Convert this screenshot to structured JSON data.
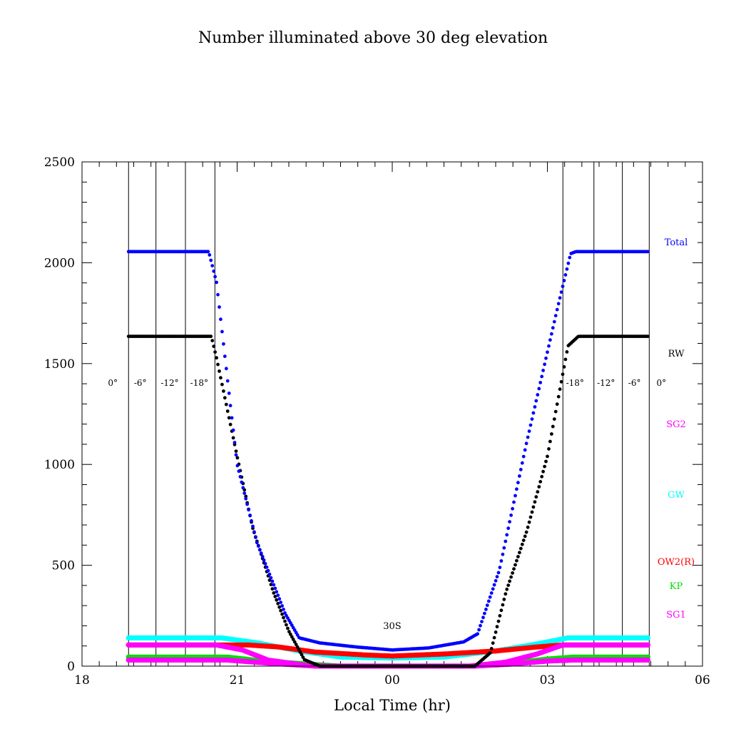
{
  "chart_data": {
    "type": "scatter",
    "title": "Number illuminated above 30 deg elevation",
    "xlabel": "Local Time (hr)",
    "ylabel": "",
    "xlim": [
      18,
      30
    ],
    "ylim": [
      0,
      2500
    ],
    "xticks": [
      {
        "v": 18,
        "label": "18"
      },
      {
        "v": 21,
        "label": "21"
      },
      {
        "v": 24,
        "label": "00"
      },
      {
        "v": 27,
        "label": "03"
      },
      {
        "v": 30,
        "label": "06"
      }
    ],
    "yticks": [
      {
        "v": 0,
        "label": "0"
      },
      {
        "v": 500,
        "label": "500"
      },
      {
        "v": 1000,
        "label": "1000"
      },
      {
        "v": 1500,
        "label": "1500"
      },
      {
        "v": 2000,
        "label": "2000"
      },
      {
        "v": 2500,
        "label": "2500"
      }
    ],
    "annotation": "30S",
    "twilight_lines": [
      {
        "x": 18.9,
        "label": "0°",
        "side": "left"
      },
      {
        "x": 19.43,
        "label": "-6°",
        "side": "left"
      },
      {
        "x": 20.0,
        "label": "-12°",
        "side": "left"
      },
      {
        "x": 20.57,
        "label": "-18°",
        "side": "left"
      },
      {
        "x": 27.3,
        "label": "-18°",
        "side": "right"
      },
      {
        "x": 27.9,
        "label": "-12°",
        "side": "right"
      },
      {
        "x": 28.45,
        "label": "-6°",
        "side": "right"
      },
      {
        "x": 28.97,
        "label": "0°",
        "side": "right"
      }
    ],
    "series": [
      {
        "name": "Total",
        "color": "#0000ff",
        "points": [
          [
            18.9,
            2055
          ],
          [
            20.45,
            2055
          ],
          [
            20.6,
            1905
          ],
          [
            21.0,
            1000
          ],
          [
            21.38,
            615
          ],
          [
            21.93,
            260
          ],
          [
            22.2,
            140
          ],
          [
            22.6,
            115
          ],
          [
            23.3,
            95
          ],
          [
            24,
            80
          ],
          [
            24.7,
            90
          ],
          [
            25.38,
            120
          ],
          [
            25.65,
            160
          ],
          [
            26.07,
            475
          ],
          [
            26.6,
            1110
          ],
          [
            27.2,
            1780
          ],
          [
            27.45,
            2045
          ],
          [
            27.55,
            2055
          ],
          [
            28.97,
            2055
          ]
        ]
      },
      {
        "name": "RW",
        "color": "#000000",
        "points": [
          [
            18.9,
            1635
          ],
          [
            20.5,
            1635
          ],
          [
            20.6,
            1530
          ],
          [
            21.0,
            1040
          ],
          [
            21.3,
            686
          ],
          [
            21.7,
            368
          ],
          [
            22.0,
            173
          ],
          [
            22.3,
            32
          ],
          [
            22.6,
            0
          ],
          [
            25.6,
            0
          ],
          [
            25.9,
            67
          ],
          [
            26.2,
            368
          ],
          [
            26.6,
            668
          ],
          [
            27.0,
            1040
          ],
          [
            27.4,
            1588
          ],
          [
            27.6,
            1635
          ],
          [
            28.97,
            1635
          ]
        ]
      },
      {
        "name": "SG2",
        "color": "#ff00ff",
        "points": [
          [
            18.9,
            105
          ],
          [
            20.6,
            105
          ],
          [
            21.1,
            80
          ],
          [
            21.6,
            30
          ],
          [
            22.3,
            5
          ],
          [
            22.8,
            0
          ],
          [
            25.5,
            0
          ],
          [
            26.2,
            20
          ],
          [
            26.8,
            60
          ],
          [
            27.3,
            105
          ],
          [
            28.97,
            105
          ]
        ]
      },
      {
        "name": "GW",
        "color": "#00ffff",
        "points": [
          [
            18.9,
            140
          ],
          [
            20.7,
            140
          ],
          [
            21.4,
            115
          ],
          [
            22.2,
            75
          ],
          [
            23.0,
            45
          ],
          [
            24,
            40
          ],
          [
            25,
            45
          ],
          [
            26,
            75
          ],
          [
            26.8,
            110
          ],
          [
            27.4,
            140
          ],
          [
            28.97,
            140
          ]
        ]
      },
      {
        "name": "OW2(R)",
        "color": "#ff0000",
        "points": [
          [
            18.9,
            105
          ],
          [
            21.2,
            105
          ],
          [
            21.8,
            95
          ],
          [
            22.5,
            70
          ],
          [
            23.5,
            55
          ],
          [
            24,
            50
          ],
          [
            25,
            60
          ],
          [
            26,
            75
          ],
          [
            26.8,
            95
          ],
          [
            27.3,
            105
          ],
          [
            28.97,
            105
          ]
        ]
      },
      {
        "name": "KP",
        "color": "#00dd00",
        "points": [
          [
            18.9,
            45
          ],
          [
            20.8,
            45
          ],
          [
            21.5,
            25
          ],
          [
            22.5,
            8
          ],
          [
            23.0,
            0
          ],
          [
            25.5,
            0
          ],
          [
            26.3,
            15
          ],
          [
            27.0,
            35
          ],
          [
            27.5,
            45
          ],
          [
            28.97,
            45
          ]
        ]
      },
      {
        "name": "SG1",
        "color": "#ff00ff",
        "points": [
          [
            18.9,
            30
          ],
          [
            20.8,
            30
          ],
          [
            21.6,
            15
          ],
          [
            22.5,
            0
          ],
          [
            25.6,
            0
          ],
          [
            26.3,
            10
          ],
          [
            27.0,
            25
          ],
          [
            27.5,
            30
          ],
          [
            28.97,
            30
          ]
        ]
      }
    ]
  }
}
